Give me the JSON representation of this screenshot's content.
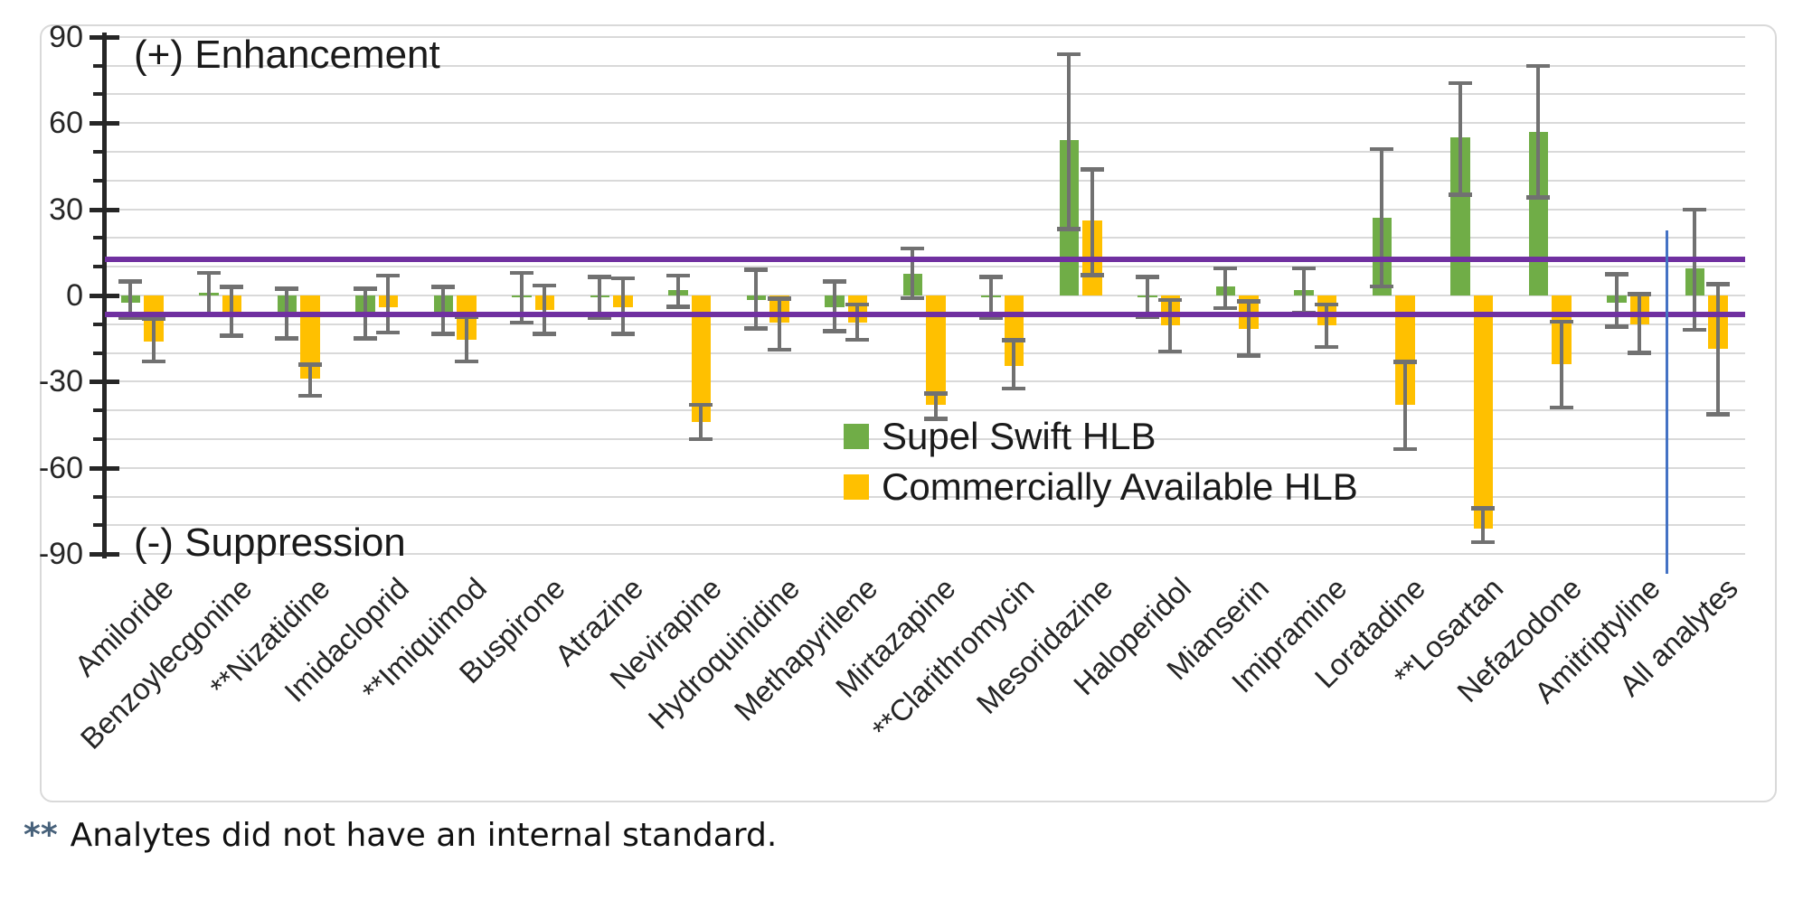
{
  "footnote": {
    "marker": "**",
    "text": "Analytes did not have an internal standard.",
    "marker_color": "#47617a"
  },
  "chart_data": {
    "type": "bar",
    "title": "",
    "xlabel": "",
    "ylabel": "",
    "categories": [
      "Amiloride",
      "Benzoylecgonine",
      "**Nizatidine",
      "Imidacloprid",
      "**Imiquimod",
      "Buspirone",
      "Atrazine",
      "Nevirapine",
      "Hydroquinidine",
      "Methapyrilene",
      "Mirtazapine",
      "**Clarithromycin",
      "Mesoridazine",
      "Haloperidol",
      "Mianserin",
      "Imipramine",
      "Loratadine",
      "**Losartan",
      "Nefazodone",
      "Amitriptyline",
      "All analytes"
    ],
    "series": [
      {
        "name": "Supel Swift HLB",
        "color": "#70ad47",
        "values": [
          -2.5,
          1,
          -6.5,
          -6.5,
          -6.5,
          -0.5,
          -0.5,
          2,
          -1.5,
          -4,
          7.5,
          -0.5,
          54,
          -0.5,
          3,
          2,
          27,
          55,
          57,
          -2.5,
          9.5
        ],
        "error_high": [
          5,
          8,
          2.5,
          2.5,
          3,
          8,
          6.5,
          7,
          9,
          5,
          16.5,
          6.5,
          84,
          6.5,
          9.5,
          9.5,
          51,
          74,
          80,
          7.5,
          30
        ],
        "error_low": [
          -8,
          -6.5,
          -15,
          -15,
          -13.5,
          -9.5,
          -8,
          -4,
          -11.5,
          -12.5,
          -1,
          -8,
          23,
          -7.5,
          -4.5,
          -6,
          3,
          35,
          34,
          -11,
          -12
        ]
      },
      {
        "name": "Commercially Available HLB",
        "color": "#ffc000",
        "values": [
          -16,
          -6.5,
          -29,
          -4,
          -15.5,
          -5,
          -4,
          -44,
          -9.5,
          -9.5,
          -38,
          -24.5,
          26,
          -10.5,
          -11.5,
          -10.5,
          -38,
          -81,
          -24,
          -10,
          -18.5
        ],
        "error_high": [
          -8,
          3,
          -24,
          7,
          -7.5,
          3.5,
          6,
          -38,
          -1,
          -3,
          -34,
          -15.5,
          44,
          -1.5,
          -2,
          -3,
          -23,
          -74,
          -9,
          0.5,
          4
        ],
        "error_low": [
          -23,
          -14,
          -35,
          -13,
          -23,
          -13.5,
          -13.5,
          -50,
          -19,
          -15.5,
          -43,
          -32.5,
          7,
          -19.5,
          -21,
          -18,
          -53.5,
          -86,
          -39,
          -20,
          -41.5
        ]
      }
    ],
    "ylim": [
      -90,
      90
    ],
    "y_ticks": [
      {
        "value": 90,
        "label": "90"
      },
      {
        "value": 60,
        "label": "60"
      },
      {
        "value": 30,
        "label": "30"
      },
      {
        "value": 0,
        "label": "0"
      },
      {
        "value": -30,
        "label": "-30"
      },
      {
        "value": -60,
        "label": "-60"
      },
      {
        "value": -90,
        "label": "-90"
      }
    ],
    "ytick_step_minor": 10,
    "grid": true,
    "gridline_color": "#d9d9d9",
    "error_bar_color": "#717171",
    "legend_position": "inside-center",
    "annotations": [
      {
        "text": "(+) Enhancement",
        "position": "top-left"
      },
      {
        "text": "(-) Suppression",
        "position": "bottom-left"
      }
    ],
    "reference_lines": [
      {
        "y": 12.5,
        "color": "#7030a0"
      },
      {
        "y": -6.5,
        "color": "#7030a0"
      }
    ],
    "divider_line": {
      "after_category": "Amitriptyline",
      "y_from": 22.5,
      "y_to": -97,
      "color": "#4472c4"
    }
  }
}
